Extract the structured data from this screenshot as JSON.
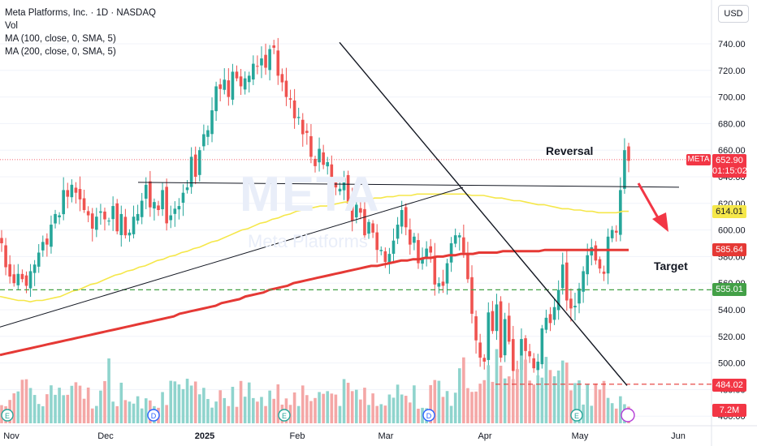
{
  "legend": {
    "title": "Meta Platforms, Inc. · 1D · NASDAQ",
    "vol": "Vol",
    "ma100": "MA (100, close, 0, SMA, 5)",
    "ma200": "MA (200, close, 0, SMA, 5)"
  },
  "currency": "USD",
  "watermark": "META",
  "watermark_sub": "Meta Platforms",
  "symbol_tag": "META",
  "price_tags": {
    "last": "652.90",
    "countdown": "01:15:02",
    "ma100": "614.01",
    "ma200": "585.64",
    "support": "555.01",
    "low": "484.02",
    "volume": "7.2M"
  },
  "annotations": {
    "reversal": "Reversal",
    "target": "Target"
  },
  "colors": {
    "up": "#26a69a",
    "down": "#ef5350",
    "ma100": "#f5e74a",
    "ma200": "#e53935",
    "support": "#43a047",
    "low_line": "#e53935",
    "vol_up": "#8fd4cd",
    "vol_down": "#f4a7a6"
  },
  "chart_data": {
    "type": "candlestick",
    "symbol": "META",
    "interval": "1D",
    "exchange": "NASDAQ",
    "x_labels": [
      "Nov",
      "Dec",
      "2025",
      "Feb",
      "Mar",
      "Apr",
      "May",
      "Jun"
    ],
    "y_ticks": [
      460,
      480,
      500,
      520,
      540,
      560,
      580,
      600,
      620,
      640,
      660,
      680,
      700,
      720,
      740
    ],
    "y_tick_labels": [
      "460.00",
      "480.00",
      "500.00",
      "520.00",
      "540.00",
      "560.00",
      "580.00",
      "600.00",
      "620.00",
      "640.00",
      "660.00",
      "680.00",
      "700.00",
      "720.00",
      "740.00"
    ],
    "ylim": [
      455,
      762
    ],
    "close_series": [
      590,
      572,
      565,
      560,
      567,
      563,
      558,
      569,
      574,
      583,
      591,
      589,
      604,
      612,
      611,
      630,
      625,
      634,
      628,
      623,
      615,
      611,
      601,
      610,
      614,
      608,
      607,
      618,
      599,
      612,
      596,
      598,
      610,
      612,
      622,
      634,
      617,
      621,
      615,
      630,
      605,
      611,
      616,
      618,
      628,
      632,
      655,
      640,
      660,
      672,
      675,
      690,
      708,
      706,
      713,
      700,
      719,
      714,
      708,
      714,
      716,
      725,
      723,
      729,
      722,
      736,
      737,
      716,
      711,
      700,
      698,
      684,
      685,
      672,
      673,
      655,
      648,
      661,
      649,
      651,
      640,
      632,
      631,
      639,
      620,
      607,
      619,
      613,
      596,
      606,
      598,
      585,
      585,
      576,
      582,
      592,
      604,
      615,
      602,
      589,
      595,
      575,
      579,
      586,
      583,
      559,
      560,
      558,
      575,
      590,
      596,
      596,
      583,
      563,
      537,
      517,
      504,
      501,
      538,
      524,
      544,
      504,
      533,
      516,
      494,
      493,
      518,
      509,
      505,
      496,
      501,
      526,
      534,
      530,
      542,
      555,
      574,
      547,
      541,
      543,
      556,
      569,
      581,
      587,
      577,
      571,
      567,
      595,
      600,
      598,
      630,
      660,
      652
    ],
    "ma100": [
      550,
      549,
      548,
      547,
      547,
      546,
      547,
      547,
      548,
      549,
      550,
      552,
      554,
      555,
      557,
      559,
      560,
      562,
      564,
      566,
      567,
      569,
      570,
      572,
      573,
      575,
      577,
      578,
      580,
      581,
      583,
      584,
      586,
      587,
      589,
      591,
      592,
      594,
      596,
      598,
      600,
      601,
      603,
      605,
      606,
      608,
      609,
      611,
      612,
      614,
      615,
      616,
      617,
      618,
      618,
      619,
      620,
      621,
      621,
      622,
      622,
      623,
      624,
      624,
      625,
      625,
      626,
      626,
      626,
      627,
      627,
      627,
      627,
      627,
      627,
      627,
      627,
      627,
      626,
      626,
      626,
      625,
      624,
      624,
      623,
      622,
      622,
      621,
      620,
      619,
      619,
      618,
      617,
      616,
      616,
      615,
      615,
      614,
      614,
      613,
      613,
      613,
      613,
      614,
      614
    ],
    "ma200": [
      506,
      507,
      508,
      509,
      510,
      511,
      512,
      513,
      514,
      515,
      516,
      517,
      518,
      519,
      520,
      521,
      522,
      523,
      524,
      525,
      526,
      527,
      528,
      529,
      530,
      531,
      532,
      533,
      534,
      535,
      537,
      538,
      539,
      540,
      541,
      542,
      543,
      545,
      546,
      547,
      548,
      550,
      551,
      552,
      553,
      555,
      556,
      557,
      558,
      560,
      561,
      562,
      563,
      564,
      565,
      566,
      567,
      568,
      569,
      570,
      571,
      572,
      573,
      573,
      574,
      575,
      576,
      577,
      577,
      578,
      578,
      579,
      579,
      580,
      580,
      581,
      581,
      582,
      582,
      582,
      583,
      583,
      583,
      583,
      584,
      584,
      584,
      584,
      584,
      584,
      584,
      585,
      585,
      585,
      585,
      585,
      585,
      585,
      585,
      585,
      585,
      585,
      585,
      585,
      585,
      585
    ],
    "levels": {
      "resistance": 634,
      "support": 555.01,
      "low": 484.02,
      "ma100": 614.01,
      "ma200": 585.64,
      "last": 652.9
    },
    "annotations": [
      "Reversal",
      "Target"
    ],
    "indicators": [
      "Vol",
      "MA (100, close, 0, SMA, 5)",
      "MA (200, close, 0, SMA, 5)"
    ]
  }
}
